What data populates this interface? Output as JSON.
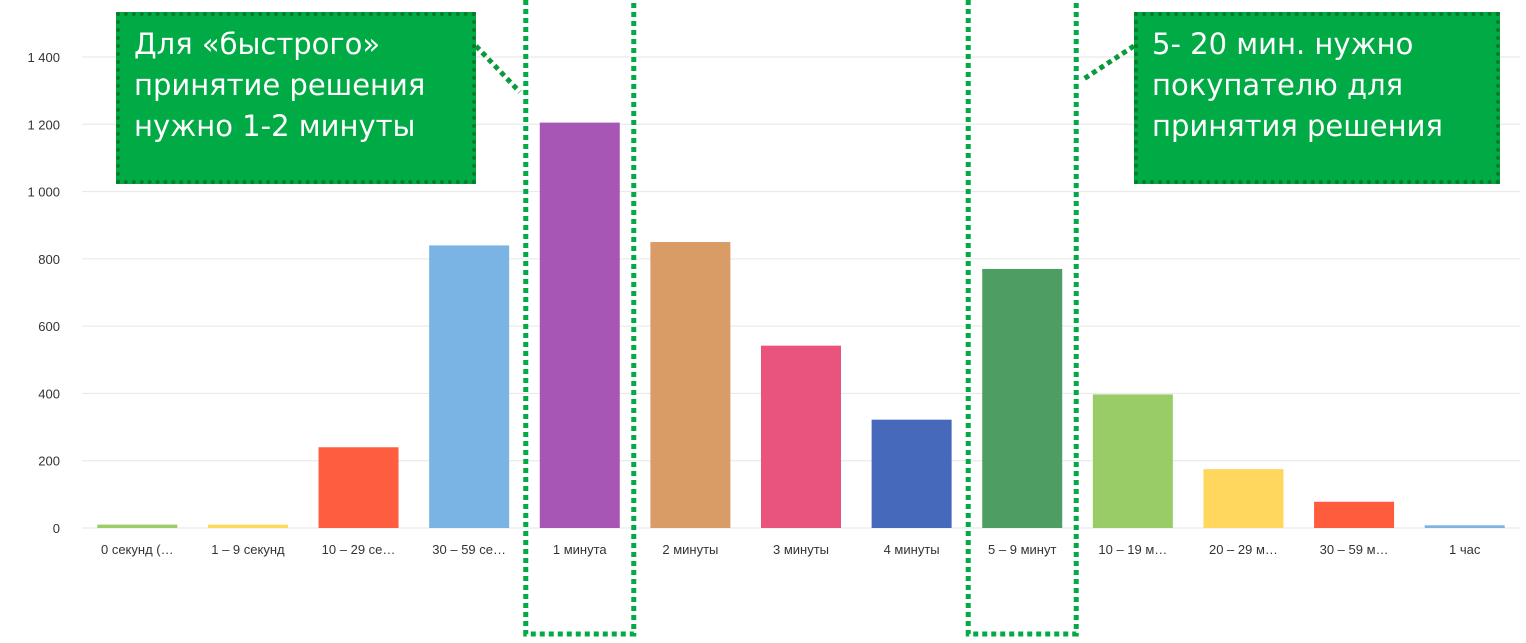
{
  "chart_data": {
    "type": "bar",
    "categories": [
      "0 секунд (…",
      "1 – 9 секунд",
      "10 – 29 се…",
      "30 – 59 се…",
      "1 минута",
      "2 минуты",
      "3 минуты",
      "4 минуты",
      "5 – 9 минут",
      "10 – 19 м…",
      "20 – 29 м…",
      "30 – 59 м…",
      "1 час"
    ],
    "values": [
      10,
      10,
      240,
      840,
      1205,
      850,
      542,
      322,
      770,
      397,
      175,
      78,
      8
    ],
    "colors": [
      "#9ccc65",
      "#ffd95a",
      "#ff5d3f",
      "#79b4e5",
      "#a756b5",
      "#da9c67",
      "#e8547e",
      "#4769bc",
      "#4e9e63",
      "#99cc66",
      "#ffd75e",
      "#ff5c3d",
      "#7db4e3"
    ],
    "ylim": [
      0,
      1400
    ],
    "yticks": [
      0,
      200,
      400,
      600,
      800,
      1000,
      1200,
      1400
    ],
    "ytick_labels": [
      "0",
      "200",
      "400",
      "600",
      "800",
      "1 000",
      "1 200",
      "1 400"
    ],
    "grid": true,
    "title": "",
    "xlabel": "",
    "ylabel": ""
  },
  "annotations": {
    "callout_left": [
      "Для «быстрого»",
      "принятие решения",
      "нужно 1-2 минуты"
    ],
    "callout_right": [
      "5- 20 мин. нужно",
      "покупателю для",
      "принятия решения"
    ]
  },
  "colors": {
    "callout_fill": "#00aa44",
    "callout_border": "#0a7a2a",
    "highlight_border": "#00aa44",
    "grid": "#e6e6e6",
    "tick_text": "#333333"
  }
}
